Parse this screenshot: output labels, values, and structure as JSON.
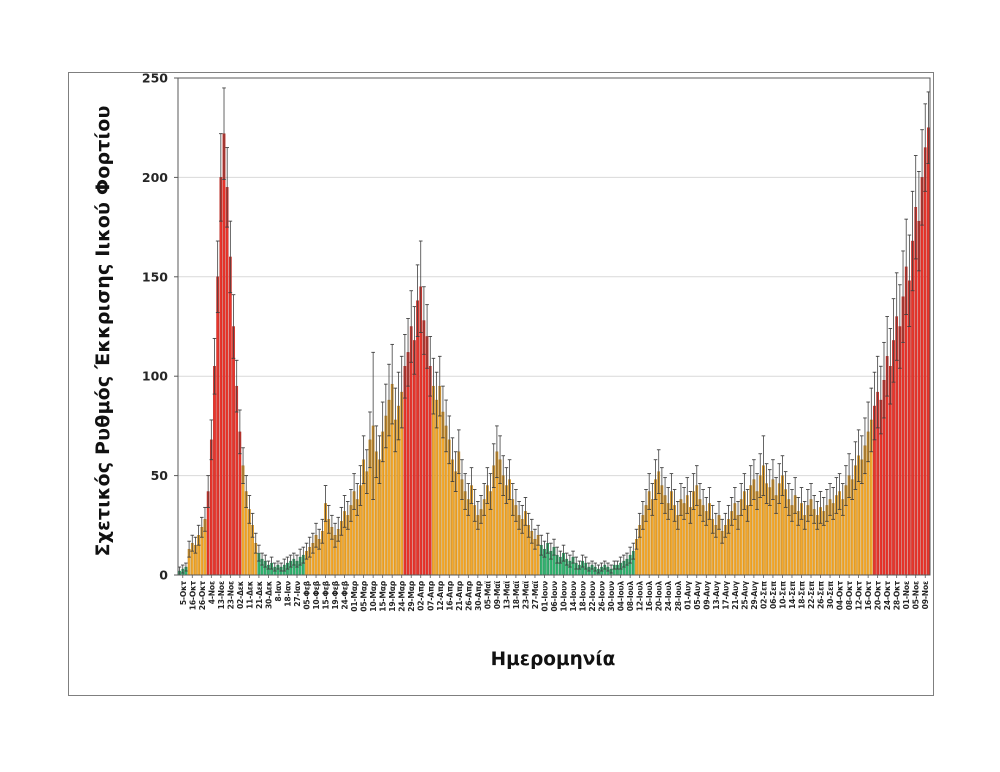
{
  "chart_data": {
    "type": "bar",
    "title": "",
    "ylabel": "Σχετικός Ρυθμός Έκκρισης Ιικού Φορτίου",
    "xlabel": "Ημερομηνία",
    "ylim": [
      0,
      250
    ],
    "yticks": [
      0,
      50,
      100,
      150,
      200,
      250
    ],
    "grid": true,
    "error_bars": true,
    "legend": "none",
    "bars_per_label": 3,
    "colors": {
      "g": {
        "fill": "#31b470",
        "stroke": "#1e7f4c"
      },
      "o": {
        "fill": "#f4a82d",
        "stroke": "#b87e15"
      },
      "r": {
        "fill": "#e9342b",
        "stroke": "#b21e17"
      },
      "grid": "#d9d9d9",
      "axis": "#595959",
      "error": "#404040",
      "figure_border": "#7f7f7f"
    },
    "categories": [
      "5-Οκτ",
      "16-Οκτ",
      "26-Οκτ",
      "4-Νοε",
      "13-Νοε",
      "23-Νοε",
      "02-Δεκ",
      "11-Δεκ",
      "21-Δεκ",
      "30-Δεκ",
      "8-Ιαν",
      "18-Ιαν",
      "27-Ιαν",
      "05-Φεβ",
      "10-Φεβ",
      "15-Φεβ",
      "19-Φεβ",
      "24-Φεβ",
      "01-Μαρ",
      "05-Μαρ",
      "10-Μαρ",
      "15-Μαρ",
      "19-Μαρ",
      "24-Μαρ",
      "29-Μαρ",
      "02-Απρ",
      "07-Απρ",
      "12-Απρ",
      "16-Απρ",
      "21-Απρ",
      "26-Απρ",
      "30-Απρ",
      "05-Μαϊ",
      "09-Μαϊ",
      "13-Μαϊ",
      "18-Μαϊ",
      "23-Μαϊ",
      "27-Μαϊ",
      "01-Ιουν",
      "06-Ιουν",
      "10-Ιουν",
      "14-Ιουν",
      "18-Ιουν",
      "22-Ιουν",
      "26-Ιουν",
      "30-Ιουν",
      "04-Ιουλ",
      "08-Ιουλ",
      "12-Ιουλ",
      "16-Ιουλ",
      "20-Ιουλ",
      "24-Ιουλ",
      "28-Ιουλ",
      "01-Αυγ",
      "05-Αυγ",
      "09-Αυγ",
      "13-Αυγ",
      "17-Αυγ",
      "21-Αυγ",
      "25-Αυγ",
      "29-Αυγ",
      "02-Σεπ",
      "06-Σεπ",
      "10-Σεπ",
      "14-Σεπ",
      "18-Σεπ",
      "22-Σεπ",
      "26-Σεπ",
      "30-Σεπ",
      "04-Οκτ",
      "08-Οκτ",
      "12-Οκτ",
      "16-Οκτ",
      "20-Οκτ",
      "24-Οκτ",
      "28-Οκτ",
      "01-Νοε",
      "05-Νοε",
      "09-Νοε"
    ],
    "bars": [
      [
        2,
        2,
        "g"
      ],
      [
        3,
        2,
        "g"
      ],
      [
        4,
        2,
        "g"
      ],
      [
        13,
        4,
        "o"
      ],
      [
        16,
        4,
        "o"
      ],
      [
        15,
        4,
        "o"
      ],
      [
        20,
        5,
        "o"
      ],
      [
        24,
        5,
        "o"
      ],
      [
        28,
        6,
        "o"
      ],
      [
        42,
        8,
        "r"
      ],
      [
        68,
        10,
        "r"
      ],
      [
        105,
        14,
        "r"
      ],
      [
        150,
        18,
        "r"
      ],
      [
        200,
        22,
        "r"
      ],
      [
        222,
        23,
        "r"
      ],
      [
        195,
        20,
        "r"
      ],
      [
        160,
        18,
        "r"
      ],
      [
        125,
        16,
        "r"
      ],
      [
        95,
        13,
        "r"
      ],
      [
        72,
        11,
        "r"
      ],
      [
        55,
        9,
        "o"
      ],
      [
        42,
        8,
        "o"
      ],
      [
        33,
        7,
        "o"
      ],
      [
        25,
        6,
        "o"
      ],
      [
        16,
        5,
        "o"
      ],
      [
        11,
        4,
        "g"
      ],
      [
        8,
        3,
        "g"
      ],
      [
        7,
        3,
        "g"
      ],
      [
        5,
        2,
        "g"
      ],
      [
        6,
        3,
        "g"
      ],
      [
        4,
        2,
        "g"
      ],
      [
        5,
        2,
        "g"
      ],
      [
        4,
        2,
        "g"
      ],
      [
        5,
        3,
        "g"
      ],
      [
        6,
        3,
        "g"
      ],
      [
        7,
        3,
        "g"
      ],
      [
        8,
        3,
        "g"
      ],
      [
        7,
        3,
        "g"
      ],
      [
        9,
        4,
        "g"
      ],
      [
        10,
        4,
        "g"
      ],
      [
        12,
        4,
        "o"
      ],
      [
        14,
        5,
        "o"
      ],
      [
        16,
        5,
        "o"
      ],
      [
        20,
        6,
        "o"
      ],
      [
        18,
        5,
        "o"
      ],
      [
        22,
        6,
        "o"
      ],
      [
        36,
        9,
        "o"
      ],
      [
        28,
        7,
        "o"
      ],
      [
        24,
        6,
        "o"
      ],
      [
        20,
        6,
        "o"
      ],
      [
        23,
        6,
        "o"
      ],
      [
        27,
        7,
        "o"
      ],
      [
        32,
        8,
        "o"
      ],
      [
        30,
        7,
        "o"
      ],
      [
        35,
        8,
        "o"
      ],
      [
        42,
        9,
        "o"
      ],
      [
        38,
        8,
        "o"
      ],
      [
        45,
        10,
        "o"
      ],
      [
        58,
        12,
        "o"
      ],
      [
        52,
        11,
        "o"
      ],
      [
        68,
        14,
        "o"
      ],
      [
        75,
        37,
        "o"
      ],
      [
        62,
        13,
        "o"
      ],
      [
        58,
        12,
        "o"
      ],
      [
        72,
        15,
        "o"
      ],
      [
        80,
        16,
        "o"
      ],
      [
        88,
        18,
        "o"
      ],
      [
        96,
        20,
        "o"
      ],
      [
        78,
        16,
        "o"
      ],
      [
        85,
        17,
        "o"
      ],
      [
        92,
        18,
        "o"
      ],
      [
        105,
        16,
        "r"
      ],
      [
        112,
        17,
        "r"
      ],
      [
        125,
        18,
        "r"
      ],
      [
        118,
        17,
        "r"
      ],
      [
        138,
        18,
        "r"
      ],
      [
        145,
        23,
        "r"
      ],
      [
        128,
        17,
        "r"
      ],
      [
        120,
        16,
        "r"
      ],
      [
        105,
        15,
        "r"
      ],
      [
        95,
        14,
        "o"
      ],
      [
        88,
        14,
        "o"
      ],
      [
        95,
        15,
        "o"
      ],
      [
        82,
        13,
        "o"
      ],
      [
        75,
        13,
        "o"
      ],
      [
        68,
        12,
        "o"
      ],
      [
        58,
        11,
        "o"
      ],
      [
        52,
        10,
        "o"
      ],
      [
        62,
        11,
        "o"
      ],
      [
        48,
        10,
        "o"
      ],
      [
        42,
        9,
        "o"
      ],
      [
        38,
        8,
        "o"
      ],
      [
        45,
        9,
        "o"
      ],
      [
        35,
        8,
        "o"
      ],
      [
        30,
        7,
        "o"
      ],
      [
        33,
        7,
        "o"
      ],
      [
        38,
        8,
        "o"
      ],
      [
        45,
        9,
        "o"
      ],
      [
        42,
        9,
        "o"
      ],
      [
        55,
        11,
        "o"
      ],
      [
        62,
        13,
        "o"
      ],
      [
        58,
        12,
        "o"
      ],
      [
        50,
        10,
        "o"
      ],
      [
        45,
        9,
        "o"
      ],
      [
        48,
        10,
        "o"
      ],
      [
        38,
        8,
        "o"
      ],
      [
        35,
        8,
        "o"
      ],
      [
        30,
        7,
        "o"
      ],
      [
        28,
        7,
        "o"
      ],
      [
        32,
        7,
        "o"
      ],
      [
        25,
        6,
        "o"
      ],
      [
        22,
        6,
        "o"
      ],
      [
        18,
        5,
        "o"
      ],
      [
        20,
        5,
        "o"
      ],
      [
        15,
        5,
        "g"
      ],
      [
        13,
        4,
        "g"
      ],
      [
        16,
        5,
        "g"
      ],
      [
        12,
        4,
        "g"
      ],
      [
        14,
        4,
        "g"
      ],
      [
        10,
        4,
        "g"
      ],
      [
        9,
        3,
        "g"
      ],
      [
        11,
        4,
        "g"
      ],
      [
        8,
        3,
        "g"
      ],
      [
        7,
        3,
        "g"
      ],
      [
        9,
        3,
        "g"
      ],
      [
        6,
        3,
        "g"
      ],
      [
        5,
        2,
        "g"
      ],
      [
        7,
        3,
        "g"
      ],
      [
        6,
        3,
        "g"
      ],
      [
        4,
        2,
        "g"
      ],
      [
        5,
        2,
        "g"
      ],
      [
        4,
        2,
        "g"
      ],
      [
        3,
        2,
        "g"
      ],
      [
        4,
        2,
        "g"
      ],
      [
        5,
        2,
        "g"
      ],
      [
        4,
        2,
        "g"
      ],
      [
        3,
        2,
        "g"
      ],
      [
        5,
        2,
        "g"
      ],
      [
        5,
        2,
        "g"
      ],
      [
        6,
        3,
        "g"
      ],
      [
        7,
        3,
        "g"
      ],
      [
        8,
        3,
        "g"
      ],
      [
        10,
        4,
        "g"
      ],
      [
        12,
        4,
        "g"
      ],
      [
        18,
        5,
        "o"
      ],
      [
        25,
        6,
        "o"
      ],
      [
        30,
        7,
        "o"
      ],
      [
        35,
        8,
        "o"
      ],
      [
        42,
        9,
        "o"
      ],
      [
        38,
        8,
        "o"
      ],
      [
        48,
        10,
        "o"
      ],
      [
        52,
        11,
        "o"
      ],
      [
        45,
        9,
        "o"
      ],
      [
        40,
        9,
        "o"
      ],
      [
        36,
        8,
        "o"
      ],
      [
        42,
        9,
        "o"
      ],
      [
        35,
        8,
        "o"
      ],
      [
        30,
        7,
        "o"
      ],
      [
        38,
        8,
        "o"
      ],
      [
        36,
        8,
        "o"
      ],
      [
        40,
        9,
        "o"
      ],
      [
        34,
        8,
        "o"
      ],
      [
        42,
        9,
        "o"
      ],
      [
        45,
        10,
        "o"
      ],
      [
        38,
        8,
        "o"
      ],
      [
        35,
        8,
        "o"
      ],
      [
        32,
        7,
        "o"
      ],
      [
        36,
        8,
        "o"
      ],
      [
        28,
        7,
        "o"
      ],
      [
        25,
        6,
        "o"
      ],
      [
        30,
        7,
        "o"
      ],
      [
        22,
        6,
        "o"
      ],
      [
        25,
        6,
        "o"
      ],
      [
        28,
        7,
        "o"
      ],
      [
        32,
        7,
        "o"
      ],
      [
        36,
        8,
        "o"
      ],
      [
        30,
        7,
        "o"
      ],
      [
        38,
        8,
        "o"
      ],
      [
        42,
        9,
        "o"
      ],
      [
        35,
        8,
        "o"
      ],
      [
        45,
        10,
        "o"
      ],
      [
        48,
        10,
        "o"
      ],
      [
        42,
        9,
        "o"
      ],
      [
        50,
        11,
        "o"
      ],
      [
        55,
        15,
        "o"
      ],
      [
        46,
        10,
        "o"
      ],
      [
        44,
        9,
        "o"
      ],
      [
        48,
        10,
        "o"
      ],
      [
        40,
        9,
        "o"
      ],
      [
        46,
        10,
        "o"
      ],
      [
        50,
        10,
        "o"
      ],
      [
        43,
        9,
        "o"
      ],
      [
        38,
        8,
        "o"
      ],
      [
        35,
        8,
        "o"
      ],
      [
        40,
        9,
        "o"
      ],
      [
        32,
        7,
        "o"
      ],
      [
        36,
        8,
        "o"
      ],
      [
        30,
        7,
        "o"
      ],
      [
        35,
        8,
        "o"
      ],
      [
        38,
        8,
        "o"
      ],
      [
        33,
        7,
        "o"
      ],
      [
        30,
        7,
        "o"
      ],
      [
        34,
        8,
        "o"
      ],
      [
        32,
        7,
        "o"
      ],
      [
        35,
        8,
        "o"
      ],
      [
        38,
        8,
        "o"
      ],
      [
        36,
        8,
        "o"
      ],
      [
        40,
        9,
        "o"
      ],
      [
        42,
        9,
        "o"
      ],
      [
        38,
        8,
        "o"
      ],
      [
        45,
        10,
        "o"
      ],
      [
        50,
        11,
        "o"
      ],
      [
        48,
        10,
        "o"
      ],
      [
        55,
        12,
        "o"
      ],
      [
        60,
        13,
        "o"
      ],
      [
        58,
        12,
        "o"
      ],
      [
        65,
        14,
        "o"
      ],
      [
        72,
        15,
        "o"
      ],
      [
        78,
        16,
        "o"
      ],
      [
        85,
        17,
        "r"
      ],
      [
        92,
        18,
        "r"
      ],
      [
        88,
        17,
        "r"
      ],
      [
        98,
        19,
        "r"
      ],
      [
        110,
        20,
        "r"
      ],
      [
        105,
        19,
        "r"
      ],
      [
        118,
        21,
        "r"
      ],
      [
        130,
        22,
        "r"
      ],
      [
        125,
        21,
        "r"
      ],
      [
        140,
        23,
        "r"
      ],
      [
        155,
        24,
        "r"
      ],
      [
        148,
        23,
        "r"
      ],
      [
        168,
        25,
        "r"
      ],
      [
        185,
        26,
        "r"
      ],
      [
        178,
        25,
        "r"
      ],
      [
        200,
        24,
        "r"
      ],
      [
        215,
        22,
        "r"
      ],
      [
        225,
        18,
        "r"
      ]
    ]
  }
}
